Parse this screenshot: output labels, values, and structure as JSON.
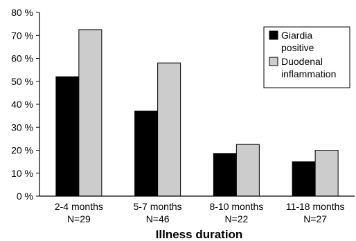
{
  "chart_data": {
    "type": "bar",
    "categories": [
      "2-4 months",
      "5-7 months",
      "8-10 months",
      "11-18 months"
    ],
    "category_sublabels": [
      "N=29",
      "N=46",
      "N=22",
      "N=27"
    ],
    "series": [
      {
        "name": "Giardia positive",
        "values": [
          52,
          37,
          18.5,
          15
        ],
        "color": "#000000"
      },
      {
        "name": "Duodenal inflammation",
        "values": [
          72.5,
          58,
          22.5,
          20
        ],
        "color": "#cccccc"
      }
    ],
    "legend_lines": [
      [
        "Giardia",
        "positive"
      ],
      [
        "Duodenal",
        "inflammation"
      ]
    ],
    "xlabel": "Illness duration",
    "ylabel": "",
    "ylim": [
      0,
      80
    ],
    "yticks": [
      0,
      10,
      20,
      30,
      40,
      50,
      60,
      70,
      80
    ],
    "ytick_suffix": " %",
    "grid": false,
    "legend_position": "top-right"
  }
}
